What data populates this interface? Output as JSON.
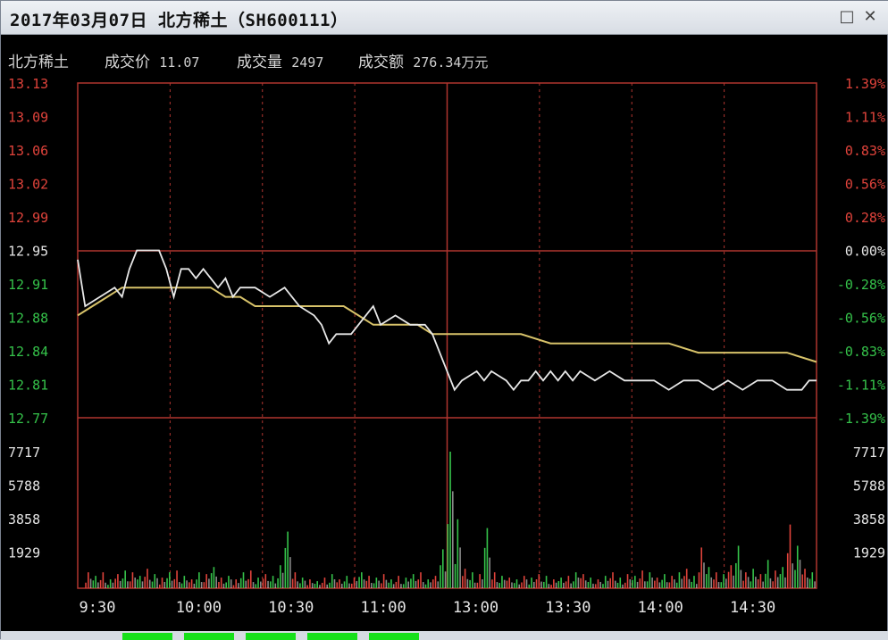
{
  "window": {
    "title": "2017年03月07日 北方稀土（SH600111）",
    "buttons": {
      "restore": "□",
      "close": "✕"
    }
  },
  "infobar": {
    "name": "北方稀土",
    "price_label": "成交价",
    "price_value": "11.07",
    "volume_label": "成交量",
    "volume_value": "2497",
    "amount_label": "成交额",
    "amount_value": "276.34万元"
  },
  "colors": {
    "up": "#e0433b",
    "down": "#35c24a",
    "neutral": "#e6e6e6",
    "price_line": "#e8e8e8",
    "avg_line": "#d8c36a",
    "grid": "#b0352f"
  },
  "chart_data": {
    "type": "line",
    "price_ticks": [
      "13.13",
      "13.09",
      "13.06",
      "13.02",
      "12.99",
      "12.95",
      "12.91",
      "12.88",
      "12.84",
      "12.81",
      "12.77"
    ],
    "pct_ticks": [
      "1.39%",
      "1.11%",
      "0.83%",
      "0.56%",
      "0.28%",
      "0.00%",
      "-0.28%",
      "-0.56%",
      "-0.83%",
      "-1.11%",
      "-1.39%"
    ],
    "volume_ticks": [
      "7717",
      "5788",
      "3858",
      "1929"
    ],
    "time_ticks": [
      "9:30",
      "10:00",
      "10:30",
      "11:00",
      "13:00",
      "13:30",
      "14:00",
      "14:30"
    ],
    "ylim": [
      12.77,
      13.13
    ],
    "volume_max": 7717,
    "price_series": [
      [
        0,
        12.94
      ],
      [
        1,
        12.89
      ],
      [
        3,
        12.9
      ],
      [
        5,
        12.91
      ],
      [
        6,
        12.9
      ],
      [
        7,
        12.93
      ],
      [
        8,
        12.95
      ],
      [
        10,
        12.95
      ],
      [
        11,
        12.95
      ],
      [
        12,
        12.93
      ],
      [
        13,
        12.9
      ],
      [
        14,
        12.93
      ],
      [
        15,
        12.93
      ],
      [
        16,
        12.92
      ],
      [
        17,
        12.93
      ],
      [
        18,
        12.92
      ],
      [
        19,
        12.91
      ],
      [
        20,
        12.92
      ],
      [
        21,
        12.9
      ],
      [
        22,
        12.91
      ],
      [
        24,
        12.91
      ],
      [
        26,
        12.9
      ],
      [
        28,
        12.91
      ],
      [
        29,
        12.9
      ],
      [
        30,
        12.89
      ],
      [
        32,
        12.88
      ],
      [
        33,
        12.87
      ],
      [
        34,
        12.85
      ],
      [
        35,
        12.86
      ],
      [
        37,
        12.86
      ],
      [
        39,
        12.88
      ],
      [
        40,
        12.89
      ],
      [
        41,
        12.87
      ],
      [
        43,
        12.88
      ],
      [
        45,
        12.87
      ],
      [
        47,
        12.87
      ],
      [
        48,
        12.86
      ],
      [
        49,
        12.84
      ],
      [
        50,
        12.82
      ],
      [
        51,
        12.8
      ],
      [
        52,
        12.81
      ],
      [
        54,
        12.82
      ],
      [
        55,
        12.81
      ],
      [
        56,
        12.82
      ],
      [
        58,
        12.81
      ],
      [
        59,
        12.8
      ],
      [
        60,
        12.81
      ],
      [
        61,
        12.81
      ],
      [
        62,
        12.82
      ],
      [
        63,
        12.81
      ],
      [
        64,
        12.82
      ],
      [
        65,
        12.81
      ],
      [
        66,
        12.82
      ],
      [
        67,
        12.81
      ],
      [
        68,
        12.82
      ],
      [
        70,
        12.81
      ],
      [
        72,
        12.82
      ],
      [
        74,
        12.81
      ],
      [
        75,
        12.81
      ],
      [
        78,
        12.81
      ],
      [
        80,
        12.8
      ],
      [
        82,
        12.81
      ],
      [
        84,
        12.81
      ],
      [
        86,
        12.8
      ],
      [
        88,
        12.81
      ],
      [
        90,
        12.8
      ],
      [
        92,
        12.81
      ],
      [
        94,
        12.81
      ],
      [
        96,
        12.8
      ],
      [
        98,
        12.8
      ],
      [
        99,
        12.81
      ],
      [
        100,
        12.81
      ]
    ],
    "avg_series": [
      [
        0,
        12.88
      ],
      [
        2,
        12.89
      ],
      [
        4,
        12.9
      ],
      [
        6,
        12.91
      ],
      [
        8,
        12.91
      ],
      [
        10,
        12.91
      ],
      [
        12,
        12.91
      ],
      [
        14,
        12.91
      ],
      [
        16,
        12.91
      ],
      [
        18,
        12.91
      ],
      [
        20,
        12.9
      ],
      [
        22,
        12.9
      ],
      [
        24,
        12.89
      ],
      [
        26,
        12.89
      ],
      [
        28,
        12.89
      ],
      [
        30,
        12.89
      ],
      [
        32,
        12.89
      ],
      [
        34,
        12.89
      ],
      [
        36,
        12.89
      ],
      [
        38,
        12.88
      ],
      [
        40,
        12.87
      ],
      [
        42,
        12.87
      ],
      [
        44,
        12.87
      ],
      [
        46,
        12.87
      ],
      [
        48,
        12.86
      ],
      [
        52,
        12.86
      ],
      [
        56,
        12.86
      ],
      [
        60,
        12.86
      ],
      [
        64,
        12.85
      ],
      [
        68,
        12.85
      ],
      [
        72,
        12.85
      ],
      [
        76,
        12.85
      ],
      [
        80,
        12.85
      ],
      [
        84,
        12.84
      ],
      [
        88,
        12.84
      ],
      [
        92,
        12.84
      ],
      [
        96,
        12.84
      ],
      [
        100,
        12.83
      ]
    ],
    "volume_series": [
      [
        1,
        900,
        "u"
      ],
      [
        2,
        700,
        "d"
      ],
      [
        3,
        900,
        "u"
      ],
      [
        4,
        500,
        "d"
      ],
      [
        5,
        800,
        "u"
      ],
      [
        6,
        1000,
        "d"
      ],
      [
        7,
        900,
        "u"
      ],
      [
        8,
        700,
        "d"
      ],
      [
        9,
        1100,
        "u"
      ],
      [
        10,
        800,
        "d"
      ],
      [
        11,
        600,
        "u"
      ],
      [
        12,
        900,
        "d"
      ],
      [
        13,
        1000,
        "u"
      ],
      [
        14,
        700,
        "d"
      ],
      [
        15,
        500,
        "u"
      ],
      [
        16,
        900,
        "d"
      ],
      [
        17,
        800,
        "u"
      ],
      [
        18,
        1200,
        "d"
      ],
      [
        19,
        600,
        "u"
      ],
      [
        20,
        700,
        "d"
      ],
      [
        21,
        500,
        "u"
      ],
      [
        22,
        900,
        "d"
      ],
      [
        23,
        1000,
        "u"
      ],
      [
        24,
        600,
        "d"
      ],
      [
        25,
        800,
        "u"
      ],
      [
        26,
        700,
        "d"
      ],
      [
        27,
        1300,
        "d"
      ],
      [
        28,
        3200,
        "d"
      ],
      [
        29,
        900,
        "u"
      ],
      [
        30,
        600,
        "d"
      ],
      [
        31,
        500,
        "u"
      ],
      [
        32,
        400,
        "d"
      ],
      [
        33,
        600,
        "u"
      ],
      [
        34,
        800,
        "d"
      ],
      [
        35,
        500,
        "u"
      ],
      [
        36,
        700,
        "d"
      ],
      [
        37,
        600,
        "u"
      ],
      [
        38,
        900,
        "d"
      ],
      [
        39,
        700,
        "u"
      ],
      [
        40,
        600,
        "d"
      ],
      [
        41,
        800,
        "u"
      ],
      [
        42,
        500,
        "d"
      ],
      [
        43,
        700,
        "u"
      ],
      [
        44,
        600,
        "d"
      ],
      [
        45,
        800,
        "d"
      ],
      [
        46,
        900,
        "u"
      ],
      [
        47,
        500,
        "d"
      ],
      [
        48,
        700,
        "u"
      ],
      [
        49,
        2200,
        "d"
      ],
      [
        50,
        7717,
        "d"
      ],
      [
        51,
        3900,
        "d"
      ],
      [
        52,
        1100,
        "u"
      ],
      [
        53,
        900,
        "d"
      ],
      [
        54,
        800,
        "u"
      ],
      [
        55,
        3400,
        "d"
      ],
      [
        56,
        900,
        "u"
      ],
      [
        57,
        700,
        "d"
      ],
      [
        58,
        600,
        "u"
      ],
      [
        59,
        500,
        "d"
      ],
      [
        60,
        700,
        "u"
      ],
      [
        61,
        600,
        "d"
      ],
      [
        62,
        800,
        "u"
      ],
      [
        63,
        700,
        "d"
      ],
      [
        64,
        500,
        "u"
      ],
      [
        65,
        600,
        "d"
      ],
      [
        66,
        700,
        "u"
      ],
      [
        67,
        900,
        "d"
      ],
      [
        68,
        800,
        "u"
      ],
      [
        69,
        600,
        "d"
      ],
      [
        70,
        500,
        "u"
      ],
      [
        71,
        700,
        "d"
      ],
      [
        72,
        900,
        "u"
      ],
      [
        73,
        600,
        "d"
      ],
      [
        74,
        800,
        "u"
      ],
      [
        75,
        700,
        "d"
      ],
      [
        76,
        1000,
        "u"
      ],
      [
        77,
        900,
        "d"
      ],
      [
        78,
        600,
        "u"
      ],
      [
        79,
        800,
        "d"
      ],
      [
        80,
        700,
        "u"
      ],
      [
        81,
        900,
        "d"
      ],
      [
        82,
        1100,
        "u"
      ],
      [
        83,
        700,
        "d"
      ],
      [
        84,
        2300,
        "u"
      ],
      [
        85,
        1200,
        "d"
      ],
      [
        86,
        900,
        "u"
      ],
      [
        87,
        800,
        "d"
      ],
      [
        88,
        1300,
        "u"
      ],
      [
        89,
        2400,
        "d"
      ],
      [
        90,
        900,
        "u"
      ],
      [
        91,
        1100,
        "d"
      ],
      [
        92,
        800,
        "u"
      ],
      [
        93,
        1600,
        "d"
      ],
      [
        94,
        1000,
        "u"
      ],
      [
        95,
        1200,
        "d"
      ],
      [
        96,
        3600,
        "u"
      ],
      [
        97,
        2400,
        "d"
      ],
      [
        98,
        1100,
        "u"
      ],
      [
        99,
        900,
        "d"
      ]
    ]
  }
}
